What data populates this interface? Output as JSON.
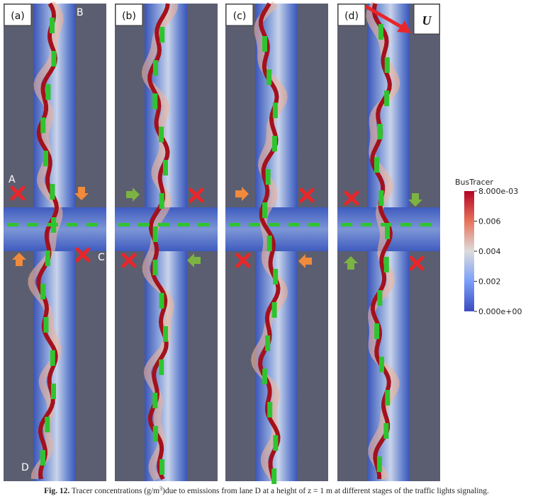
{
  "panels": [
    {
      "label": "(a)"
    },
    {
      "label": "(b)"
    },
    {
      "label": "(c)"
    },
    {
      "label": "(d)"
    }
  ],
  "lane_labels": {
    "A": "A",
    "B": "B",
    "C": "C",
    "D": "D"
  },
  "wind_label": "U",
  "colorbar": {
    "title": "BusTracer",
    "ticks": [
      {
        "value": 0.008,
        "label": "8.000e-03"
      },
      {
        "value": 0.006,
        "label": "0.006"
      },
      {
        "value": 0.004,
        "label": "0.004"
      },
      {
        "value": 0.002,
        "label": "0.002"
      },
      {
        "value": 0,
        "label": "0.000e+00"
      }
    ]
  },
  "caption": {
    "label": "Fig. 12.",
    "text_before": "Tracer concentrations (g/m",
    "superscript": "3",
    "text_after": ")due to emissions from lane D at a height of z = 1 m at different stages of the traffic lights signaling."
  }
}
